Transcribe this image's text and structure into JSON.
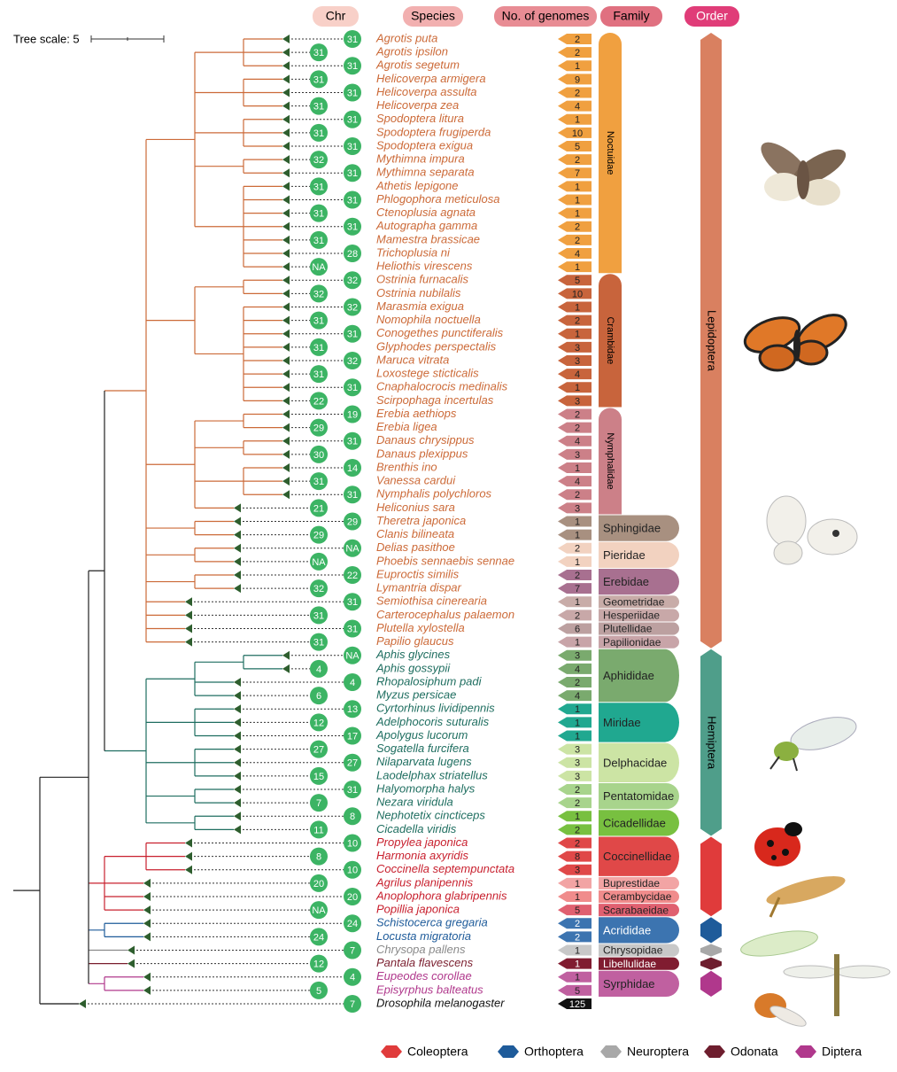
{
  "headers": {
    "chr": "Chr",
    "species": "Species",
    "genomes": "No. of genomes",
    "family": "Family",
    "order": "Order"
  },
  "tree_scale": "Tree scale: 5",
  "orders": [
    {
      "name": "Lepidoptera",
      "color": "#d98060",
      "text_color": "#cc6a38",
      "families": [
        {
          "name": "Noctuidae",
          "color": "#f0a040",
          "species": [
            {
              "name": "Agrotis puta",
              "chr": 31,
              "genomes": 2
            },
            {
              "name": "Agrotis ipsilon",
              "chr": 31,
              "genomes": 2
            },
            {
              "name": "Agrotis segetum",
              "chr": 31,
              "genomes": 1
            },
            {
              "name": "Helicoverpa armigera",
              "chr": 31,
              "genomes": 9
            },
            {
              "name": "Helicoverpa assulta",
              "chr": 31,
              "genomes": 2
            },
            {
              "name": "Helicoverpa zea",
              "chr": 31,
              "genomes": 4
            },
            {
              "name": "Spodoptera litura",
              "chr": 31,
              "genomes": 1
            },
            {
              "name": "Spodoptera frugiperda",
              "chr": 31,
              "genomes": 10
            },
            {
              "name": "Spodoptera exigua",
              "chr": 31,
              "genomes": 5
            },
            {
              "name": "Mythimna impura",
              "chr": 32,
              "genomes": 2
            },
            {
              "name": "Mythimna separata",
              "chr": 31,
              "genomes": 7
            },
            {
              "name": "Athetis lepigone",
              "chr": 31,
              "genomes": 1
            },
            {
              "name": "Phlogophora meticulosa",
              "chr": 31,
              "genomes": 1
            },
            {
              "name": "Ctenoplusia agnata",
              "chr": 31,
              "genomes": 1
            },
            {
              "name": "Autographa gamma",
              "chr": 31,
              "genomes": 2
            },
            {
              "name": "Mamestra brassicae",
              "chr": 31,
              "genomes": 2
            },
            {
              "name": "Trichoplusia ni",
              "chr": 28,
              "genomes": 4
            },
            {
              "name": "Heliothis virescens",
              "chr": "NA",
              "genomes": 1
            }
          ]
        },
        {
          "name": "Crambidae",
          "color": "#c8643c",
          "species": [
            {
              "name": "Ostrinia furnacalis",
              "chr": 32,
              "genomes": 5
            },
            {
              "name": "Ostrinia nubilalis",
              "chr": 32,
              "genomes": 10
            },
            {
              "name": "Marasmia exigua",
              "chr": 32,
              "genomes": 1
            },
            {
              "name": "Nomophila noctuella",
              "chr": 31,
              "genomes": 2
            },
            {
              "name": "Conogethes punctiferalis",
              "chr": 31,
              "genomes": 1
            },
            {
              "name": "Glyphodes perspectalis",
              "chr": 31,
              "genomes": 3
            },
            {
              "name": "Maruca vitrata",
              "chr": 32,
              "genomes": 3
            },
            {
              "name": "Loxostege sticticalis",
              "chr": 31,
              "genomes": 4
            },
            {
              "name": "Cnaphalocrocis medinalis",
              "chr": 31,
              "genomes": 1
            },
            {
              "name": "Scirpophaga incertulas",
              "chr": 22,
              "genomes": 3
            }
          ]
        },
        {
          "name": "Nymphalidae",
          "color": "#cc8088",
          "species": [
            {
              "name": "Erebia aethiops",
              "chr": 19,
              "genomes": 2
            },
            {
              "name": "Erebia ligea",
              "chr": 29,
              "genomes": 2
            },
            {
              "name": "Danaus chrysippus",
              "chr": 31,
              "genomes": 4
            },
            {
              "name": "Danaus plexippus",
              "chr": 30,
              "genomes": 3
            },
            {
              "name": "Brenthis ino",
              "chr": 14,
              "genomes": 1
            },
            {
              "name": "Vanessa cardui",
              "chr": 31,
              "genomes": 4
            },
            {
              "name": "Nymphalis polychloros",
              "chr": 31,
              "genomes": 2
            },
            {
              "name": "Heliconius sara",
              "chr": 21,
              "genomes": 3
            }
          ]
        },
        {
          "name": "Sphingidae",
          "color": "#a89080",
          "species": [
            {
              "name": "Theretra japonica",
              "chr": 29,
              "genomes": 1
            },
            {
              "name": "Clanis bilineata",
              "chr": 29,
              "genomes": 1
            }
          ]
        },
        {
          "name": "Pieridae",
          "color": "#f2d2c0",
          "species": [
            {
              "name": "Delias pasithoe",
              "chr": "NA",
              "genomes": 2
            },
            {
              "name": "Phoebis sennaebis sennae",
              "chr": "NA",
              "genomes": 1
            }
          ]
        },
        {
          "name": "Erebidae",
          "color": "#a87090",
          "species": [
            {
              "name": "Euproctis similis",
              "chr": 22,
              "genomes": 2
            },
            {
              "name": "Lymantria dispar",
              "chr": 32,
              "genomes": 7
            }
          ]
        },
        {
          "name": "Geometridae",
          "color": "#c8aca8",
          "species": [
            {
              "name": "Semiothisa cinerearia",
              "chr": 31,
              "genomes": 1
            }
          ]
        },
        {
          "name": "Hesperiidae",
          "color": "#c8a8a8",
          "species": [
            {
              "name": "Carterocephalus palaemon",
              "chr": 31,
              "genomes": 2
            }
          ]
        },
        {
          "name": "Plutellidae",
          "color": "#bca0a0",
          "species": [
            {
              "name": "Plutella xylostella",
              "chr": 31,
              "genomes": 6
            }
          ]
        },
        {
          "name": "Papilionidae",
          "color": "#c8a4a8",
          "species": [
            {
              "name": "Papilio glaucus",
              "chr": 31,
              "genomes": 1
            }
          ]
        }
      ]
    },
    {
      "name": "Hemiptera",
      "color": "#4f9e8a",
      "text_color": "#1f6e60",
      "families": [
        {
          "name": "Aphididae",
          "color": "#7aaa6e",
          "species": [
            {
              "name": "Aphis glycines",
              "chr": "NA",
              "genomes": 3
            },
            {
              "name": "Aphis gossypii",
              "chr": 4,
              "genomes": 4
            },
            {
              "name": "Rhopalosiphum padi",
              "chr": 4,
              "genomes": 2
            },
            {
              "name": "Myzus persicae",
              "chr": 6,
              "genomes": 4
            }
          ]
        },
        {
          "name": "Miridae",
          "color": "#20a890",
          "species": [
            {
              "name": "Cyrtorhinus lividipennis",
              "chr": 13,
              "genomes": 1
            },
            {
              "name": "Adelphocoris suturalis",
              "chr": 12,
              "genomes": 1
            },
            {
              "name": "Apolygus lucorum",
              "chr": 17,
              "genomes": 1
            }
          ]
        },
        {
          "name": "Delphacidae",
          "color": "#cce4a4",
          "species": [
            {
              "name": "Sogatella furcifera",
              "chr": 27,
              "genomes": 3
            },
            {
              "name": "Nilaparvata lugens",
              "chr": 27,
              "genomes": 3
            },
            {
              "name": "Laodelphax striatellus",
              "chr": 15,
              "genomes": 3
            }
          ]
        },
        {
          "name": "Pentatomidae",
          "color": "#a8d48c",
          "species": [
            {
              "name": "Halyomorpha halys",
              "chr": 31,
              "genomes": 2
            },
            {
              "name": "Nezara viridula",
              "chr": 7,
              "genomes": 2
            }
          ]
        },
        {
          "name": "Cicadellidae",
          "color": "#78c040",
          "species": [
            {
              "name": "Nephotetix cincticeps",
              "chr": 8,
              "genomes": 1
            },
            {
              "name": "Cicadella viridis",
              "chr": 11,
              "genomes": 2
            }
          ]
        }
      ]
    },
    {
      "name": "Coleoptera",
      "color": "#e03b3b",
      "text_color": "#c8202e",
      "families": [
        {
          "name": "Coccinellidae",
          "color": "#e04848",
          "species": [
            {
              "name": "Propylea japonica",
              "chr": 10,
              "genomes": 2
            },
            {
              "name": "Harmonia axyridis",
              "chr": 8,
              "genomes": 8
            },
            {
              "name": "Coccinella septempunctata",
              "chr": 10,
              "genomes": 3
            }
          ]
        },
        {
          "name": "Buprestidae",
          "color": "#f2a4a4",
          "species": [
            {
              "name": "Agrilus planipennis",
              "chr": 20,
              "genomes": 1
            }
          ]
        },
        {
          "name": "Cerambycidae",
          "color": "#f08c8c",
          "species": [
            {
              "name": "Anoplophora glabripennis",
              "chr": 20,
              "genomes": 1
            }
          ]
        },
        {
          "name": "Scarabaeidae",
          "color": "#e06070",
          "species": [
            {
              "name": "Popillia japonica",
              "chr": "NA",
              "genomes": 5
            }
          ]
        }
      ]
    },
    {
      "name": "Orthoptera",
      "color": "#1e5b9a",
      "text_color": "#1e5b9a",
      "families": [
        {
          "name": "Acrididae",
          "color": "#3c74b0",
          "species": [
            {
              "name": "Schistocerca gregaria",
              "chr": 24,
              "genomes": 2
            },
            {
              "name": "Locusta migratoria",
              "chr": 24,
              "genomes": 2
            }
          ]
        }
      ]
    },
    {
      "name": "Neuroptera",
      "color": "#a8a8a8",
      "text_color": "#8a8a8a",
      "families": [
        {
          "name": "Chrysopidae",
          "color": "#c8c8c8",
          "species": [
            {
              "name": "Chrysopa pallens",
              "chr": 7,
              "genomes": 1
            }
          ]
        }
      ]
    },
    {
      "name": "Odonata",
      "color": "#6e1e2e",
      "text_color": "#7a1e2e",
      "families": [
        {
          "name": "Libellulidae",
          "color": "#801c30",
          "species": [
            {
              "name": "Pantala flavescens",
              "chr": 12,
              "genomes": 1
            }
          ]
        }
      ]
    },
    {
      "name": "Diptera",
      "color": "#b0388c",
      "text_color": "#b0388c",
      "families": [
        {
          "name": "Syrphidae",
          "color": "#c060a0",
          "species": [
            {
              "name": "Eupeodes corollae",
              "chr": 4,
              "genomes": 1
            },
            {
              "name": "Episyrphus balteatus",
              "chr": 5,
              "genomes": 5
            }
          ]
        }
      ]
    }
  ],
  "outgroup": {
    "name": "Drosophila melanogaster",
    "chr": 7,
    "genomes": 125,
    "color": "#111111"
  }
}
